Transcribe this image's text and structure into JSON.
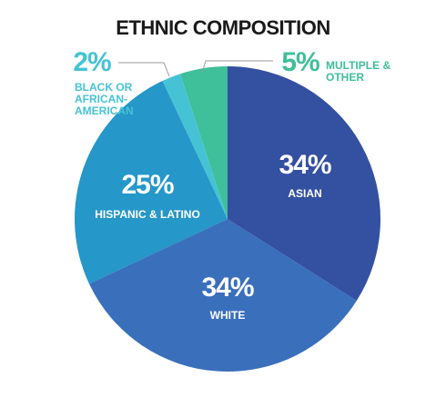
{
  "chart_data": {
    "type": "pie",
    "title": "ETHNIC COMPOSITION",
    "categories": [
      "ASIAN",
      "WHITE",
      "HISPANIC & LATINO",
      "BLACK OR AFRICAN-AMERICAN",
      "MULTIPLE & OTHER"
    ],
    "values": [
      34,
      34,
      25,
      2,
      5
    ],
    "value_labels": [
      "34%",
      "34%",
      "25%",
      "2%",
      "5%"
    ],
    "colors": [
      "#3450a1",
      "#3a6fbb",
      "#2597c9",
      "#45c3d5",
      "#3fbf9a"
    ]
  }
}
